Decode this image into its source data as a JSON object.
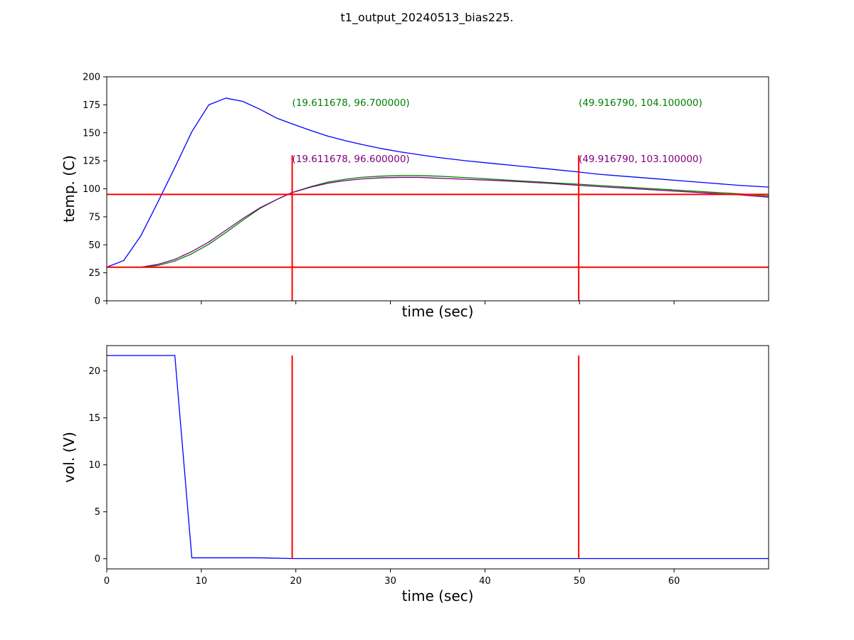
{
  "figure": {
    "title": "t1_output_20240513_bias225."
  },
  "chart_data": [
    {
      "type": "line",
      "ylabel": "temp. (C)",
      "xlabel": "time (sec)",
      "xlim": [
        0,
        70
      ],
      "ylim": [
        0,
        200
      ],
      "xticks": [
        0,
        10,
        20,
        30,
        40,
        50,
        60
      ],
      "show_xtick_labels": false,
      "yticks": [
        0,
        25,
        50,
        75,
        100,
        125,
        150,
        175,
        200
      ],
      "ytick_labels": [
        "0",
        "25",
        "50",
        "75",
        "100",
        "125",
        "150",
        "175",
        "200"
      ],
      "grid": false,
      "series": [
        {
          "color": "#0000ff",
          "x": [
            0,
            1.8,
            3.6,
            5.4,
            7.2,
            9.0,
            10.8,
            12.6,
            14.4,
            16.2,
            18.0,
            19.6,
            21.6,
            23.4,
            25.2,
            27.0,
            29.0,
            31.0,
            33.0,
            35.0,
            38.0,
            41.0,
            44.0,
            47.0,
            49.9,
            52.0,
            55.0,
            58.0,
            61.0,
            64.0,
            67.0,
            70.0
          ],
          "values": [
            30,
            36,
            58,
            88,
            119,
            151,
            175,
            181,
            178,
            171,
            163,
            158,
            152,
            147,
            143,
            139.5,
            136,
            133,
            130.5,
            128,
            125,
            122.5,
            120,
            117.5,
            115,
            113,
            111,
            109,
            107,
            105,
            103,
            101.5
          ]
        },
        {
          "color": "#008000",
          "x": [
            0,
            3.6,
            5.4,
            7.2,
            9.0,
            10.8,
            12.6,
            14.4,
            16.2,
            18.0,
            19.6,
            21.6,
            23.4,
            25.2,
            27.0,
            29.0,
            31.0,
            33.0,
            35.0,
            38.0,
            41.0,
            44.0,
            47.0,
            49.9,
            52.0,
            55.0,
            58.0,
            61.0,
            64.0,
            67.0,
            70.0
          ],
          "values": [
            30,
            30,
            31.5,
            35.5,
            42,
            50.5,
            61,
            72,
            82.5,
            90.5,
            96.7,
            102,
            106,
            108.5,
            110.3,
            111.3,
            111.8,
            111.8,
            111.3,
            110,
            108.5,
            107,
            105.5,
            104.1,
            103,
            101.5,
            100,
            98.5,
            97,
            95.5,
            93.5
          ]
        },
        {
          "color": "#800080",
          "x": [
            0,
            3.6,
            5.4,
            7.2,
            9.0,
            10.8,
            12.6,
            14.4,
            16.2,
            18.0,
            19.6,
            21.6,
            23.4,
            25.2,
            27.0,
            29.0,
            31.0,
            33.0,
            35.0,
            38.0,
            41.0,
            44.0,
            47.0,
            49.9,
            52.0,
            55.0,
            58.0,
            61.0,
            64.0,
            67.0,
            70.0
          ],
          "values": [
            30,
            30,
            32.5,
            37,
            44,
            52.5,
            63,
            73.5,
            83,
            90.5,
            96.6,
            101.5,
            105,
            107.3,
            108.8,
            109.8,
            110.2,
            110.2,
            109.5,
            108.5,
            107.5,
            106.2,
            104.8,
            103.1,
            102,
            100.5,
            99,
            97.5,
            96,
            94.5,
            92.5
          ]
        }
      ],
      "hlines": [
        {
          "y": 95,
          "color": "#ff0000"
        },
        {
          "y": 30,
          "color": "#ff0000"
        }
      ],
      "vlines": [
        {
          "x": 19.611678,
          "ymin": 0,
          "ymax": 130,
          "color": "#ff0000"
        },
        {
          "x": 49.91679,
          "ymin": 0,
          "ymax": 130,
          "color": "#ff0000"
        }
      ],
      "annotations": [
        {
          "x": 19.611678,
          "y": 177,
          "text": "(19.611678, 96.700000)",
          "color": "#008000"
        },
        {
          "x": 19.611678,
          "y": 127,
          "text": "(19.611678, 96.600000)",
          "color": "#800080"
        },
        {
          "x": 49.91679,
          "y": 177,
          "text": "(49.916790, 104.100000)",
          "color": "#008000"
        },
        {
          "x": 49.91679,
          "y": 127,
          "text": "(49.916790, 103.100000)",
          "color": "#800080"
        }
      ]
    },
    {
      "type": "line",
      "ylabel": "vol. (V)",
      "xlabel": "time (sec)",
      "xlim": [
        0,
        70
      ],
      "ylim": [
        -1.08,
        22.7
      ],
      "xticks": [
        0,
        10,
        20,
        30,
        40,
        50,
        60
      ],
      "xtick_labels": [
        "0",
        "10",
        "20",
        "30",
        "40",
        "50",
        "60"
      ],
      "show_xtick_labels": true,
      "yticks": [
        0,
        5,
        10,
        15,
        20
      ],
      "ytick_labels": [
        "0",
        "5",
        "10",
        "15",
        "20"
      ],
      "grid": false,
      "series": [
        {
          "color": "#0000ff",
          "x": [
            0,
            7.2,
            9.0,
            16.2,
            19.6,
            30,
            40,
            50,
            60,
            70
          ],
          "values": [
            21.65,
            21.65,
            0.1,
            0.1,
            0.02,
            0.02,
            0.02,
            0.02,
            0.02,
            0.02
          ]
        }
      ],
      "hlines": [],
      "vlines": [
        {
          "x": 19.611678,
          "ymin": 0,
          "ymax": 21.65,
          "color": "#ff0000"
        },
        {
          "x": 49.91679,
          "ymin": 0,
          "ymax": 21.65,
          "color": "#ff0000"
        }
      ],
      "annotations": []
    }
  ]
}
